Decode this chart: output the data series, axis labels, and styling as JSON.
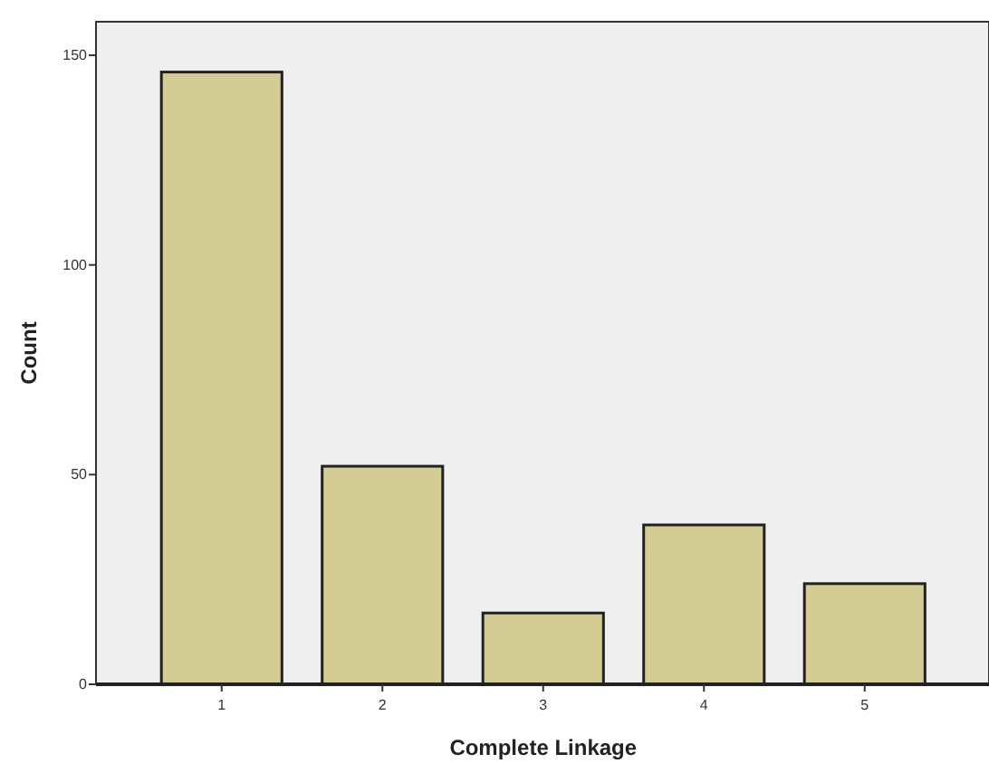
{
  "chart_data": {
    "type": "bar",
    "xlabel": "Complete Linkage",
    "ylabel": "Count",
    "categories": [
      "1",
      "2",
      "3",
      "4",
      "5"
    ],
    "values": [
      146,
      52,
      17,
      38,
      24
    ],
    "color": "#d3cd94",
    "ylim": [
      0,
      158
    ],
    "yticks": [
      0,
      50,
      100,
      150
    ],
    "grid": false
  }
}
